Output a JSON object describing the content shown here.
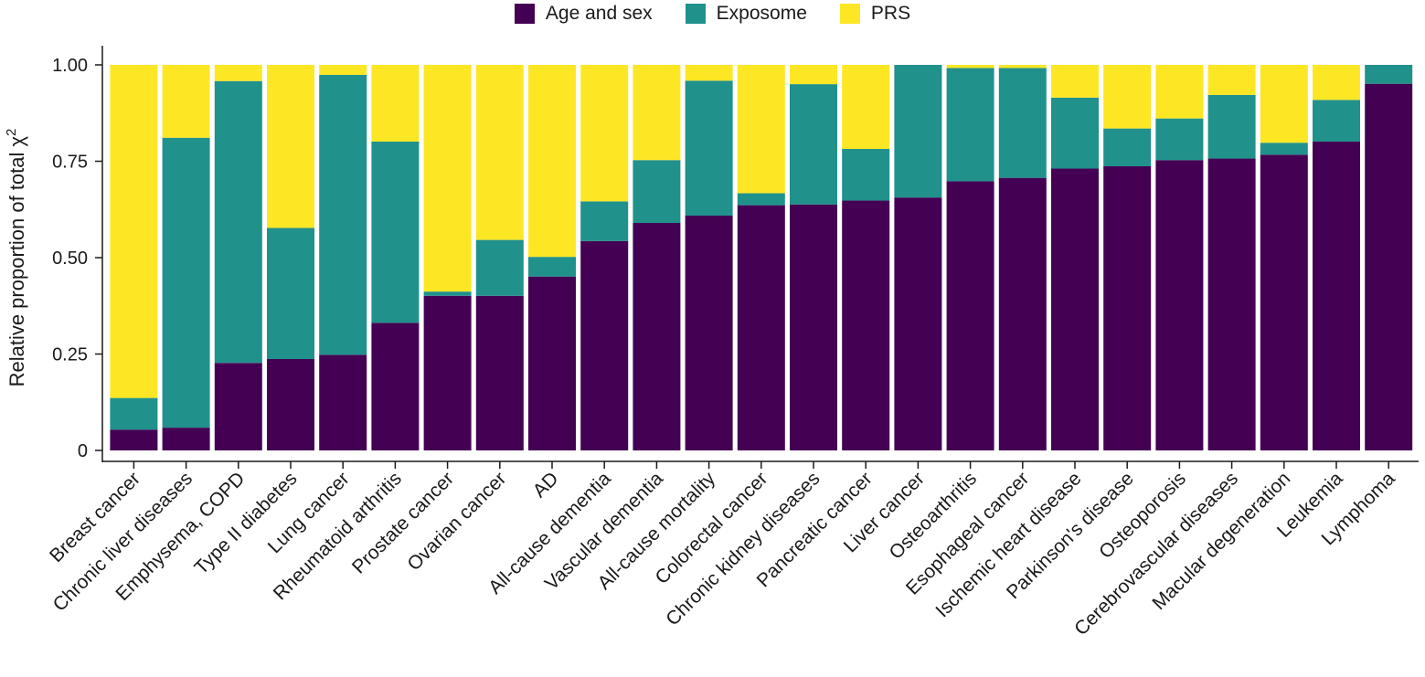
{
  "chart_data": {
    "type": "bar",
    "stacked": true,
    "ylabel": "Relative proportion of total χ²",
    "ylabel_text": "Relative proportion of total χ",
    "ylabel_sup": "2",
    "xlabel": "",
    "ylim": [
      0,
      1
    ],
    "yticks": [
      0,
      0.25,
      0.5,
      0.75,
      1.0
    ],
    "ytick_labels": [
      "0",
      "0.25",
      "0.50",
      "0.75",
      "1.00"
    ],
    "legend_position": "top-center",
    "categories": [
      "Breast cancer",
      "Chronic liver diseases",
      "Emphysema, COPD",
      "Type II diabetes",
      "Lung cancer",
      "Rheumatoid arthritis",
      "Prostate cancer",
      "Ovarian cancer",
      "AD",
      "All-cause dementia",
      "Vascular dementia",
      "All-cause mortality",
      "Colorectal cancer",
      "Chronic kidney diseases",
      "Pancreatic cancer",
      "Liver cancer",
      "Osteoarthritis",
      "Esophageal cancer",
      "Ischemic heart disease",
      "Parkinson's disease",
      "Osteoporosis",
      "Cerebrovascular diseases",
      "Macular degeneration",
      "Leukemia",
      "Lymphoma"
    ],
    "series": [
      {
        "name": "Age and sex",
        "color": "#440154",
        "values": [
          0.054,
          0.059,
          0.227,
          0.237,
          0.248,
          0.331,
          0.401,
          0.401,
          0.451,
          0.543,
          0.59,
          0.609,
          0.636,
          0.638,
          0.648,
          0.656,
          0.698,
          0.707,
          0.731,
          0.737,
          0.753,
          0.757,
          0.767,
          0.801,
          0.951
        ]
      },
      {
        "name": "Exposome",
        "color": "#21918c",
        "values": [
          0.082,
          0.752,
          0.731,
          0.34,
          0.726,
          0.47,
          0.011,
          0.145,
          0.051,
          0.103,
          0.163,
          0.35,
          0.031,
          0.312,
          0.134,
          0.344,
          0.294,
          0.285,
          0.184,
          0.098,
          0.108,
          0.165,
          0.031,
          0.108,
          0.049
        ]
      },
      {
        "name": "PRS",
        "color": "#fde725",
        "values": [
          0.864,
          0.189,
          0.042,
          0.423,
          0.026,
          0.199,
          0.588,
          0.454,
          0.498,
          0.354,
          0.247,
          0.041,
          0.333,
          0.05,
          0.218,
          0.0,
          0.008,
          0.008,
          0.085,
          0.165,
          0.139,
          0.078,
          0.202,
          0.091,
          0.0
        ]
      }
    ]
  }
}
